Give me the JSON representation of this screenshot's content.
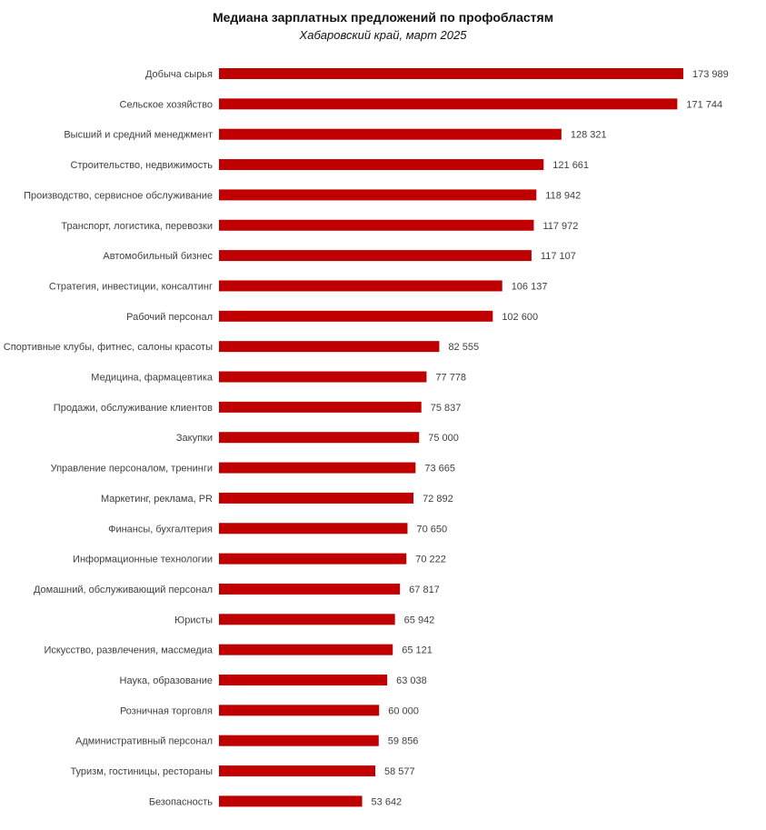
{
  "chart_data": {
    "type": "bar",
    "orientation": "horizontal",
    "title": "Медиана зарплатных предложений по профобластям",
    "subtitle": "Хабаровский край, март 2025",
    "bar_color": "#c00000",
    "categories": [
      "Добыча сырья",
      "Сельское хозяйство",
      "Высший и средний менеджмент",
      "Строительство, недвижимость",
      "Производство, сервисное обслуживание",
      "Транспорт, логистика, перевозки",
      "Автомобильный бизнес",
      "Стратегия, инвестиции, консалтинг",
      "Рабочий персонал",
      "Спортивные клубы, фитнес, салоны красоты",
      "Медицина,  фармацевтика",
      "Продажи, обслуживание клиентов",
      "Закупки",
      "Управление персоналом, тренинги",
      "Маркетинг, реклама, PR",
      "Финансы, бухгалтерия",
      "Информационные технологии",
      "Домашний, обслуживающий персонал",
      "Юристы",
      "Искусство, развлечения, массмедиа",
      "Наука, образование",
      "Розничная торговля",
      "Административный персонал",
      "Туризм, гостиницы, рестораны",
      "Безопасность"
    ],
    "values": [
      173989,
      171744,
      128321,
      121661,
      118942,
      117972,
      117107,
      106137,
      102600,
      82555,
      77778,
      75837,
      75000,
      73665,
      72892,
      70650,
      70222,
      67817,
      65942,
      65121,
      63038,
      60000,
      59856,
      58577,
      53642
    ],
    "value_labels": [
      "173 989",
      "171 744",
      "128 321",
      "121 661",
      "118 942",
      "117 972",
      "117 107",
      "106 137",
      "102 600",
      "82 555",
      "77 778",
      "75 837",
      "75 000",
      "73 665",
      "72 892",
      "70 650",
      "70 222",
      "67 817",
      "65 942",
      "65 121",
      "63 038",
      "60 000",
      "59 856",
      "58 577",
      "53 642"
    ],
    "xlim": [
      0,
      174000
    ],
    "grid": false,
    "legend": false
  }
}
